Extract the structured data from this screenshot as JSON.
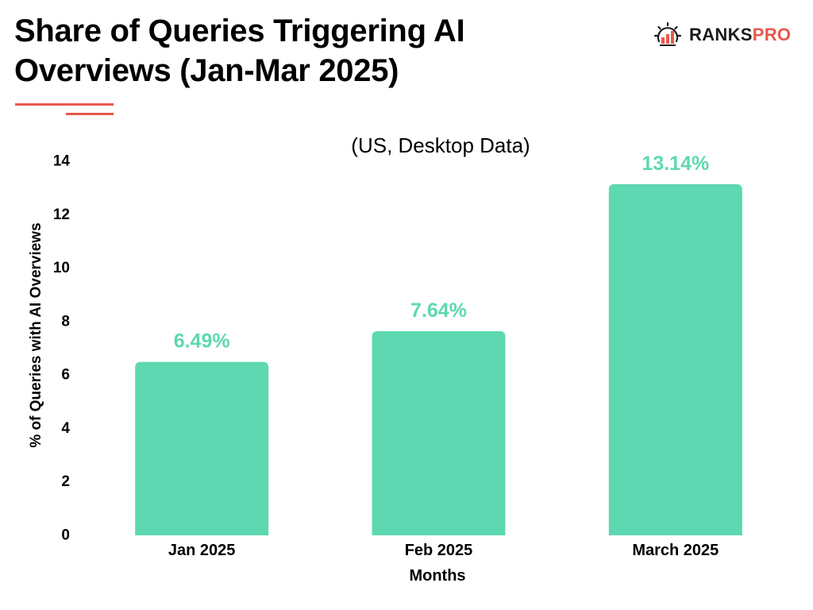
{
  "header": {
    "title": "Share of Queries Triggering AI Overviews (Jan-Mar 2025)",
    "accent_color": "#e8574c"
  },
  "logo": {
    "icon": "gear-bar-chart-icon",
    "text_primary": "RANKS",
    "text_accent": "PRO"
  },
  "chart_data": {
    "type": "bar",
    "subtitle": "(US, Desktop Data)",
    "categories": [
      "Jan 2025",
      "Feb 2025",
      "March 2025"
    ],
    "values": [
      6.49,
      7.64,
      13.14
    ],
    "data_labels": [
      "6.49%",
      "7.64%",
      "13.14%"
    ],
    "xlabel": "Months",
    "ylabel": "% of Queries with AI Overviews",
    "ylim": [
      0,
      14
    ],
    "yticks": [
      0,
      2,
      4,
      6,
      8,
      10,
      12,
      14
    ],
    "grid": false,
    "legend": "none",
    "bar_color": "#5dd8b1",
    "label_color": "#5dd8b1"
  }
}
